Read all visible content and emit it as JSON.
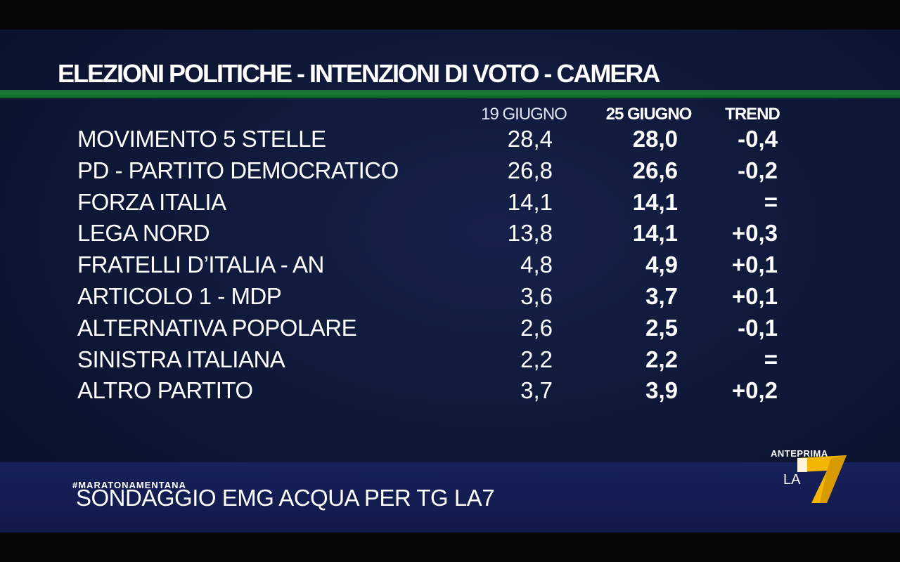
{
  "title": "ELEZIONI POLITICHE - INTENZIONI DI VOTO - CAMERA",
  "columns": {
    "date1": "19 GIUGNO",
    "date2": "25 GIUGNO",
    "trend": "TREND"
  },
  "rows": [
    {
      "party": "MOVIMENTO 5 STELLE",
      "v1": "28,4",
      "v2": "28,0",
      "trend": "-0,4"
    },
    {
      "party": "PD - PARTITO DEMOCRATICO",
      "v1": "26,8",
      "v2": "26,6",
      "trend": "-0,2"
    },
    {
      "party": "FORZA ITALIA",
      "v1": "14,1",
      "v2": "14,1",
      "trend": "="
    },
    {
      "party": "LEGA NORD",
      "v1": "13,8",
      "v2": "14,1",
      "trend": "+0,3"
    },
    {
      "party": "FRATELLI D’ITALIA - AN",
      "v1": "4,8",
      "v2": "4,9",
      "trend": "+0,1"
    },
    {
      "party": "ARTICOLO 1 - MDP",
      "v1": "3,6",
      "v2": "3,7",
      "trend": "+0,1"
    },
    {
      "party": "ALTERNATIVA POPOLARE",
      "v1": "2,6",
      "v2": "2,5",
      "trend": "-0,1"
    },
    {
      "party": "SINISTRA ITALIANA",
      "v1": "2,2",
      "v2": "2,2",
      "trend": "="
    },
    {
      "party": "ALTRO PARTITO",
      "v1": "3,7",
      "v2": "3,9",
      "trend": "+0,2"
    }
  ],
  "footer": {
    "hashtag": "#MARATONAMENTANA",
    "source": "SONDAGGIO EMG ACQUA PER TG LA7"
  },
  "logo": {
    "caption": "ANTEPRIMA",
    "la": "LA",
    "seven": "7",
    "color": "#f2b705"
  },
  "colors": {
    "background": "#0e1736",
    "accent_line": "#167a33",
    "bottom_bar": "#16205a"
  }
}
